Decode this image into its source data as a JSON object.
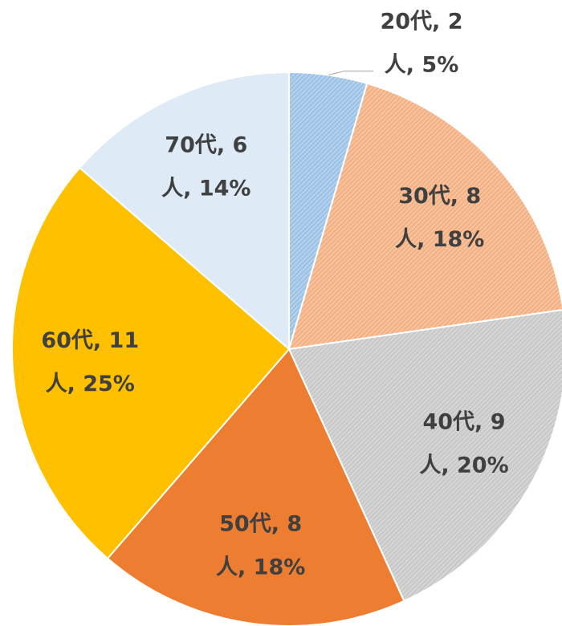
{
  "chart_data": {
    "type": "pie",
    "values": [
      2,
      8,
      9,
      8,
      11,
      6
    ],
    "value_labels": [
      [
        "20代, 2",
        "人, 5%"
      ],
      [
        "30代, 8",
        "人, 18%"
      ],
      [
        "40代, 9",
        "人, 20%"
      ],
      [
        "50代, 8",
        "人, 18%"
      ],
      [
        "60代, 11",
        "人, 25%"
      ],
      [
        "70代, 6",
        "人, 14%"
      ]
    ],
    "colors": [
      "#9dc3e6",
      "#f4b183",
      "#c9c9c9",
      "#ed7d31",
      "#ffc000",
      "#deebf7"
    ],
    "hatched": [
      true,
      true,
      true,
      false,
      false,
      false
    ]
  }
}
